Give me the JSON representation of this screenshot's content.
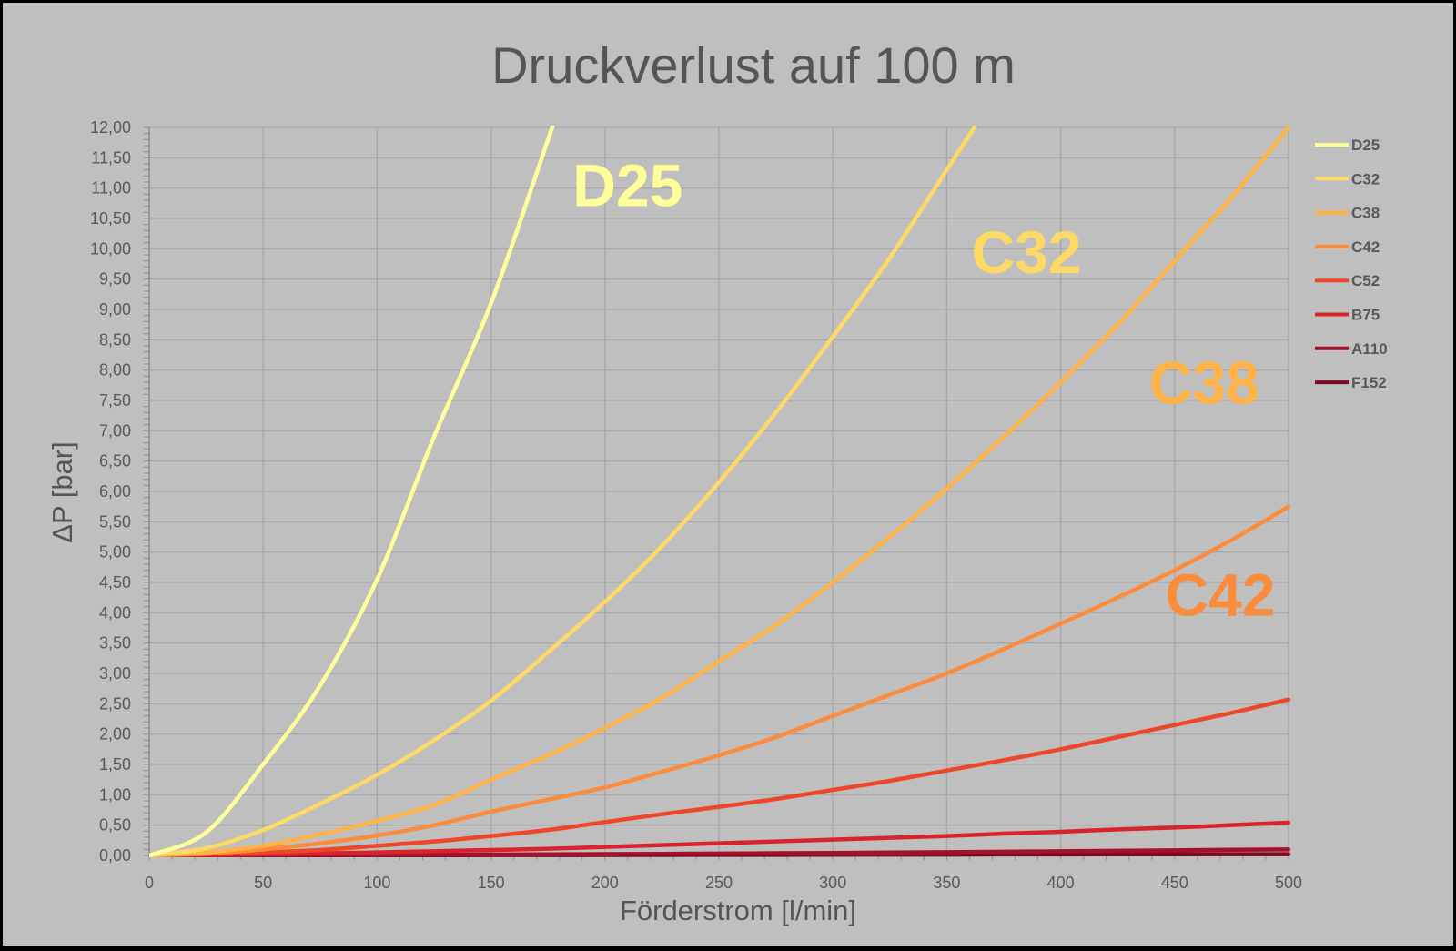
{
  "chart_data": {
    "type": "line",
    "title": "Druckverlust auf 100 m",
    "xlabel": "Förderstrom [l/min]",
    "ylabel": "ΔP [bar]",
    "xlim": [
      0,
      500
    ],
    "ylim": [
      0,
      12
    ],
    "x_ticks": [
      "0",
      "50",
      "100",
      "150",
      "200",
      "250",
      "300",
      "350",
      "400",
      "450",
      "500"
    ],
    "y_ticks": [
      "0,00",
      "0,50",
      "1,00",
      "1,50",
      "2,00",
      "2,50",
      "3,00",
      "3,50",
      "4,00",
      "4,50",
      "5,00",
      "5,50",
      "6,00",
      "6,50",
      "7,00",
      "7,50",
      "8,00",
      "8,50",
      "9,00",
      "9,50",
      "10,00",
      "10,50",
      "11,00",
      "11,50",
      "12,00"
    ],
    "grid": true,
    "legend_position": "right",
    "x": [
      0,
      25,
      50,
      75,
      100,
      125,
      150,
      175,
      200,
      225,
      250,
      275,
      300,
      325,
      350,
      375,
      400,
      425,
      450,
      475,
      500
    ],
    "series": [
      {
        "name": "D25",
        "color": "#ffff99",
        "values": [
          0,
          0.38,
          1.5,
          2.8,
          4.55,
          6.9,
          9.1,
          11.8,
          null,
          null,
          null,
          null,
          null,
          null,
          null,
          null,
          null,
          null,
          null,
          null,
          null
        ]
      },
      {
        "name": "C32",
        "color": "#ffd966",
        "values": [
          0,
          0.12,
          0.42,
          0.85,
          1.33,
          1.9,
          2.55,
          3.35,
          4.18,
          5.1,
          6.15,
          7.3,
          8.55,
          9.85,
          11.3,
          null,
          null,
          null,
          null,
          null,
          null
        ]
      },
      {
        "name": "C38",
        "color": "#ffb347",
        "values": [
          0,
          0.05,
          0.16,
          0.35,
          0.57,
          0.83,
          1.25,
          1.65,
          2.1,
          2.6,
          3.2,
          3.8,
          4.5,
          5.25,
          6.05,
          6.9,
          7.8,
          8.75,
          9.8,
          10.85,
          12.0
        ]
      },
      {
        "name": "C42",
        "color": "#fb8c3c",
        "values": [
          0,
          0.03,
          0.1,
          0.2,
          0.33,
          0.5,
          0.72,
          0.92,
          1.12,
          1.38,
          1.65,
          1.95,
          2.3,
          2.65,
          3.0,
          3.4,
          3.82,
          4.25,
          4.7,
          5.2,
          5.75
        ]
      },
      {
        "name": "C52",
        "color": "#ee4629",
        "values": [
          0,
          0.02,
          0.05,
          0.09,
          0.16,
          0.23,
          0.32,
          0.42,
          0.55,
          0.68,
          0.8,
          0.93,
          1.08,
          1.23,
          1.4,
          1.57,
          1.75,
          1.95,
          2.15,
          2.35,
          2.57
        ]
      },
      {
        "name": "B75",
        "color": "#d8232a",
        "values": [
          0,
          0.005,
          0.02,
          0.035,
          0.05,
          0.07,
          0.09,
          0.11,
          0.14,
          0.17,
          0.2,
          0.23,
          0.26,
          0.29,
          0.32,
          0.36,
          0.39,
          0.43,
          0.46,
          0.5,
          0.54
        ]
      },
      {
        "name": "A110",
        "color": "#a5112c",
        "values": [
          0,
          0.001,
          0.003,
          0.005,
          0.008,
          0.011,
          0.015,
          0.018,
          0.022,
          0.027,
          0.032,
          0.037,
          0.042,
          0.048,
          0.055,
          0.062,
          0.069,
          0.077,
          0.085,
          0.093,
          0.1
        ]
      },
      {
        "name": "F152",
        "color": "#7b0c22",
        "values": [
          0,
          0.0005,
          0.001,
          0.002,
          0.003,
          0.004,
          0.005,
          0.006,
          0.007,
          0.008,
          0.009,
          0.01,
          0.012,
          0.013,
          0.014,
          0.016,
          0.017,
          0.018,
          0.019,
          0.02,
          0.02
        ]
      }
    ],
    "annotations": [
      {
        "text": "D25",
        "color": "#ffff99"
      },
      {
        "text": "C32",
        "color": "#ffd966"
      },
      {
        "text": "C38",
        "color": "#ffb347"
      },
      {
        "text": "C42",
        "color": "#fb8c3c"
      }
    ]
  }
}
